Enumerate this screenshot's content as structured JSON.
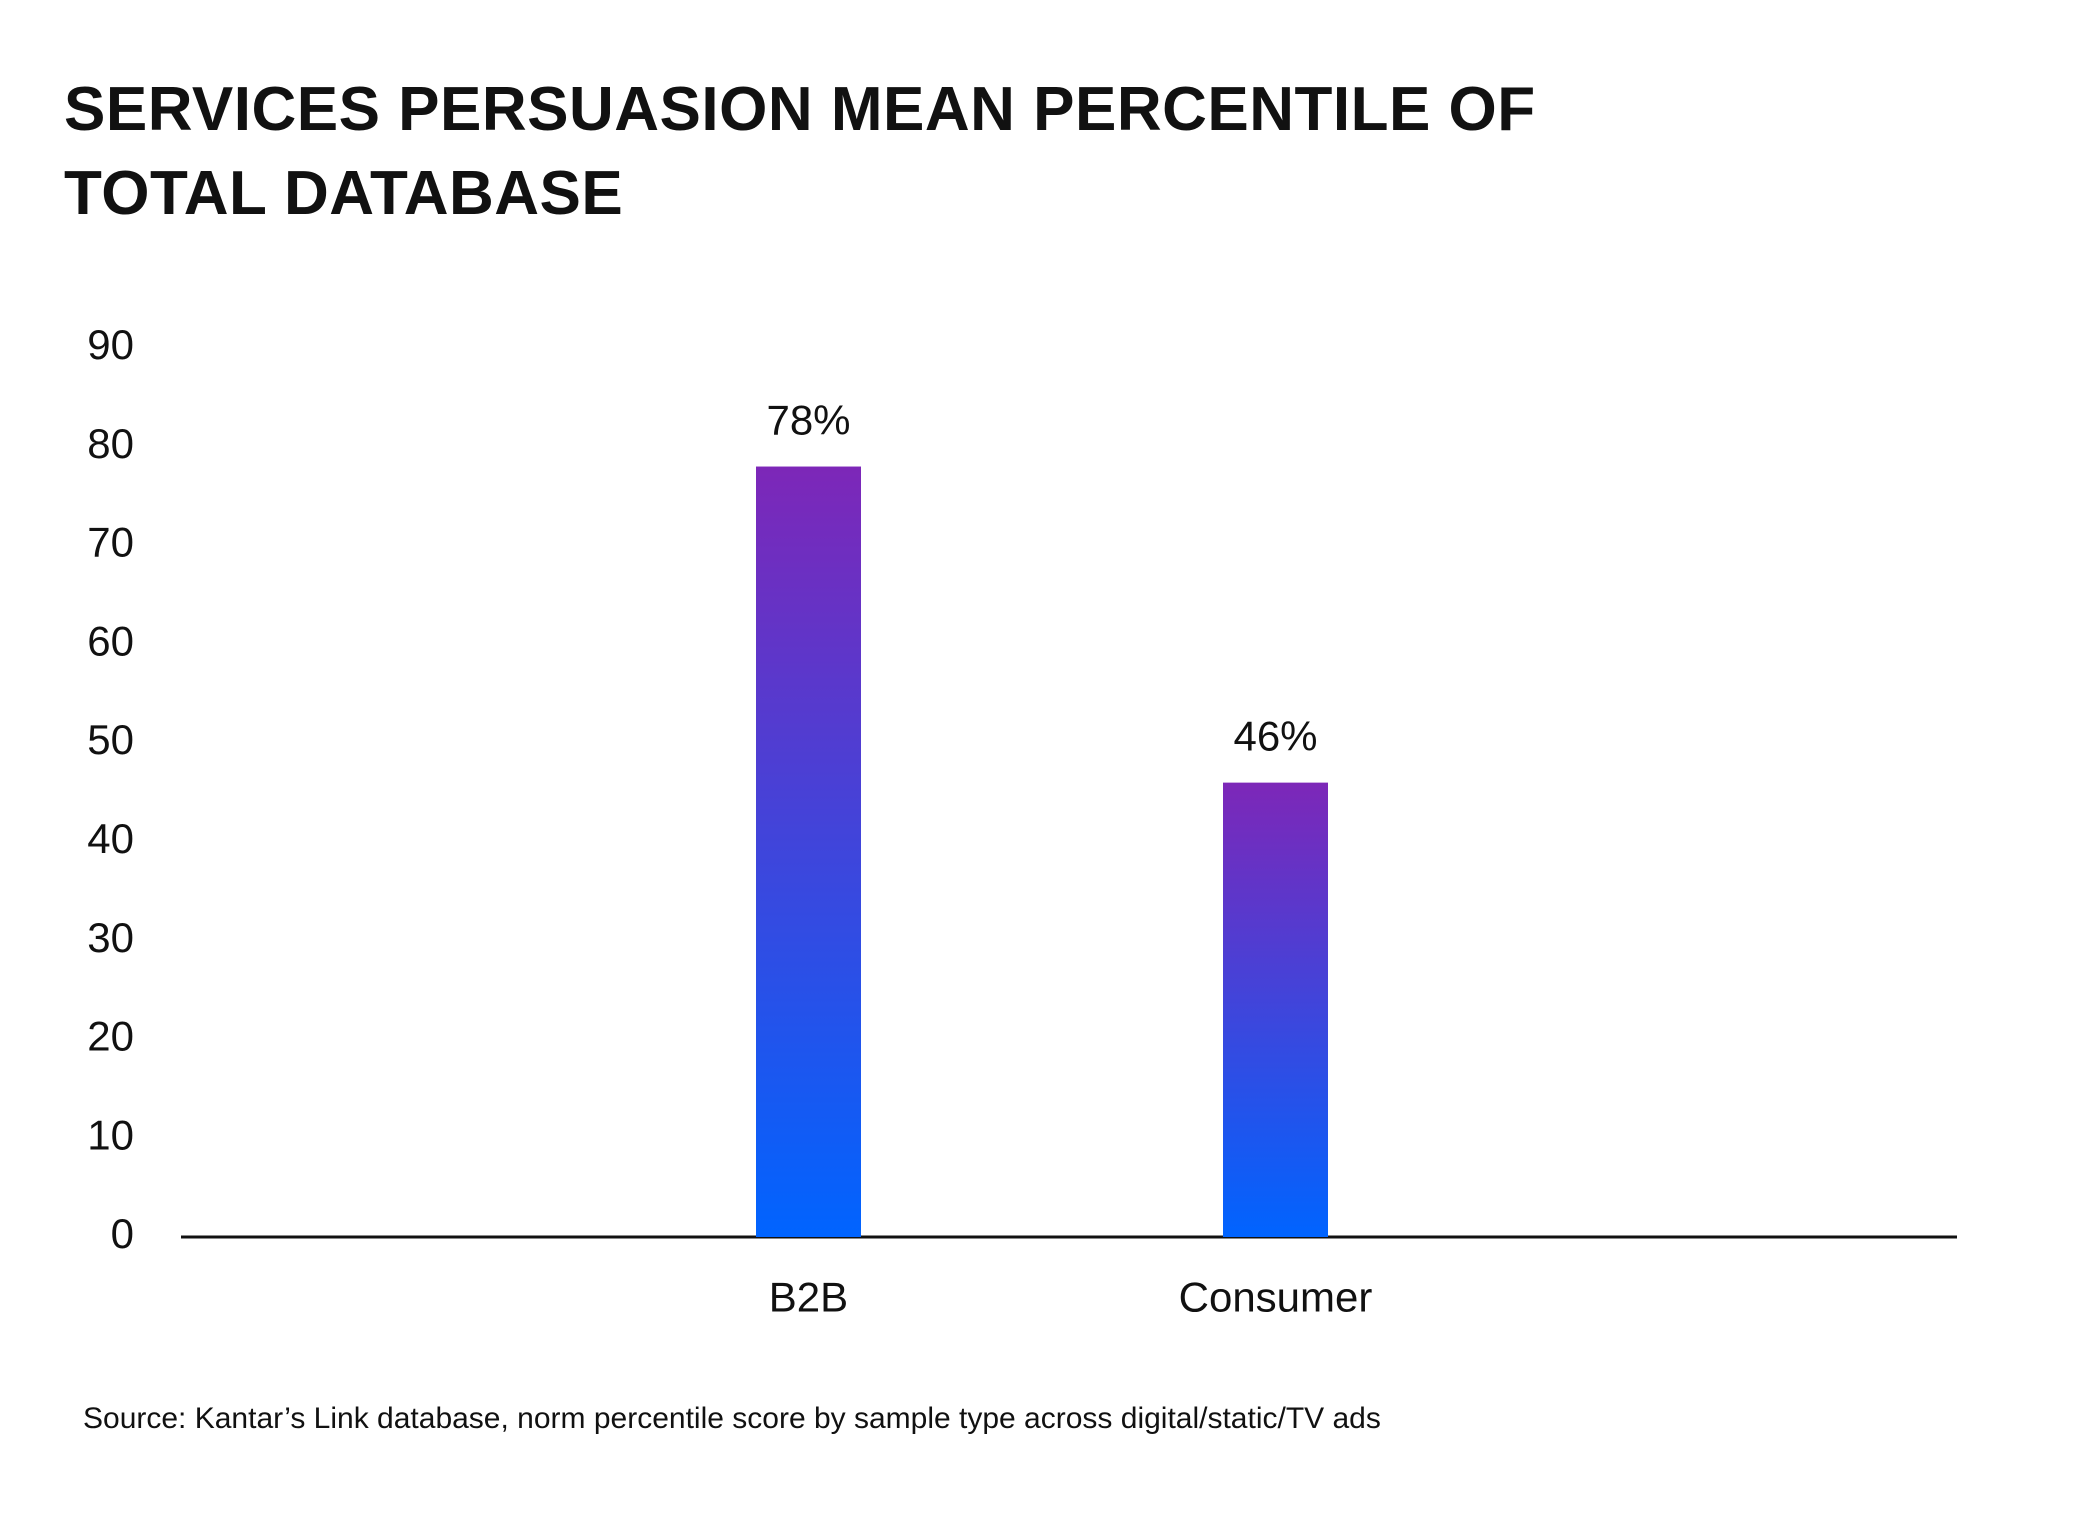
{
  "chart_data": {
    "type": "bar",
    "title": "SERVICES PERSUASION MEAN PERCENTILE OF TOTAL DATABASE",
    "categories": [
      "B2B",
      "Consumer"
    ],
    "values": [
      78,
      46
    ],
    "value_labels": [
      "78%",
      "46%"
    ],
    "gradient": {
      "top": "#7d27b8",
      "bottom": "#0064ff"
    },
    "ylim": [
      0,
      90
    ],
    "yticks": [
      0,
      10,
      20,
      30,
      40,
      50,
      60,
      70,
      80,
      90
    ],
    "grid": false,
    "source": "Source: Kantar’s Link database, norm percentile score by sample type across digital/static/TV ads"
  }
}
